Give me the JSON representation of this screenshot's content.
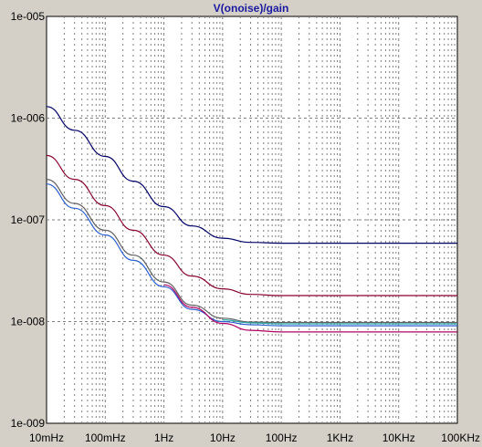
{
  "colors": {
    "plot_background": "#ffffff",
    "frame_background": "#d4d0c8",
    "title": "#1a1aa0",
    "grid": "#808080"
  },
  "chart_data": {
    "type": "line",
    "title": "V(onoise)/gain",
    "x_scale": "log",
    "y_scale": "log",
    "xlim": [
      0.01,
      100000
    ],
    "ylim": [
      1e-09,
      1e-05
    ],
    "grid": true,
    "x_ticks": [
      {
        "value": 0.01,
        "label": "10mHz"
      },
      {
        "value": 0.1,
        "label": "100mHz"
      },
      {
        "value": 1,
        "label": "1Hz"
      },
      {
        "value": 10,
        "label": "10Hz"
      },
      {
        "value": 100,
        "label": "100Hz"
      },
      {
        "value": 1000,
        "label": "1KHz"
      },
      {
        "value": 10000,
        "label": "10KHz"
      },
      {
        "value": 100000,
        "label": "100KHz"
      }
    ],
    "y_ticks": [
      {
        "value": 1e-09,
        "label": "1e-009"
      },
      {
        "value": 1e-08,
        "label": "1e-008"
      },
      {
        "value": 1e-07,
        "label": "1e-007"
      },
      {
        "value": 1e-06,
        "label": "1e-006"
      },
      {
        "value": 1e-05,
        "label": "1e-005"
      }
    ],
    "series": [
      {
        "color": "#000066",
        "x": [
          0.01,
          0.03,
          0.1,
          0.3,
          1,
          3,
          10,
          30,
          100,
          1000,
          10000,
          100000
        ],
        "y": [
          1.3e-06,
          7.6e-07,
          4.2e-07,
          2.4e-07,
          1.35e-07,
          8.7e-08,
          6.6e-08,
          6e-08,
          5.9e-08,
          5.9e-08,
          5.9e-08,
          5.9e-08
        ]
      },
      {
        "color": "#8a0030",
        "x": [
          0.01,
          0.03,
          0.1,
          0.3,
          1,
          3,
          10,
          30,
          100,
          1000,
          10000,
          100000
        ],
        "y": [
          4.3e-07,
          2.5e-07,
          1.38e-07,
          7.9e-08,
          4.5e-08,
          2.8e-08,
          2.1e-08,
          1.85e-08,
          1.8e-08,
          1.8e-08,
          1.8e-08,
          1.8e-08
        ]
      },
      {
        "color": "#606060",
        "x": [
          0.01,
          0.03,
          0.1,
          0.3,
          1,
          3,
          10,
          30,
          100,
          1000,
          10000,
          100000
        ],
        "y": [
          2.5e-07,
          1.45e-07,
          7.9e-08,
          4.5e-08,
          2.45e-08,
          1.45e-08,
          1.08e-08,
          9.9e-09,
          9.8e-09,
          9.8e-09,
          9.8e-09,
          9.8e-09
        ]
      },
      {
        "color": "#2a5fd0",
        "x": [
          0.01,
          0.03,
          0.1,
          0.3,
          1,
          3,
          10,
          30,
          100,
          1000,
          10000,
          100000
        ],
        "y": [
          2.25e-07,
          1.3e-07,
          7.1e-08,
          4e-08,
          2.2e-08,
          1.32e-08,
          1e-08,
          9.3e-09,
          9.1e-09,
          9.1e-09,
          9.1e-09,
          9.1e-09
        ]
      },
      {
        "color": "#28a8a8",
        "x": [
          10,
          30,
          100,
          1000,
          10000,
          100000
        ],
        "y": [
          1.04e-08,
          9.7e-09,
          9.5e-09,
          9.5e-09,
          9.5e-09,
          9.5e-09
        ]
      },
      {
        "color": "#b00060",
        "x": [
          1,
          3,
          10,
          30,
          100,
          1000,
          10000,
          100000
        ],
        "y": [
          2.3e-08,
          1.38e-08,
          9.6e-09,
          8.2e-09,
          7.9e-09,
          7.9e-09,
          7.9e-09,
          7.9e-09
        ]
      }
    ]
  }
}
